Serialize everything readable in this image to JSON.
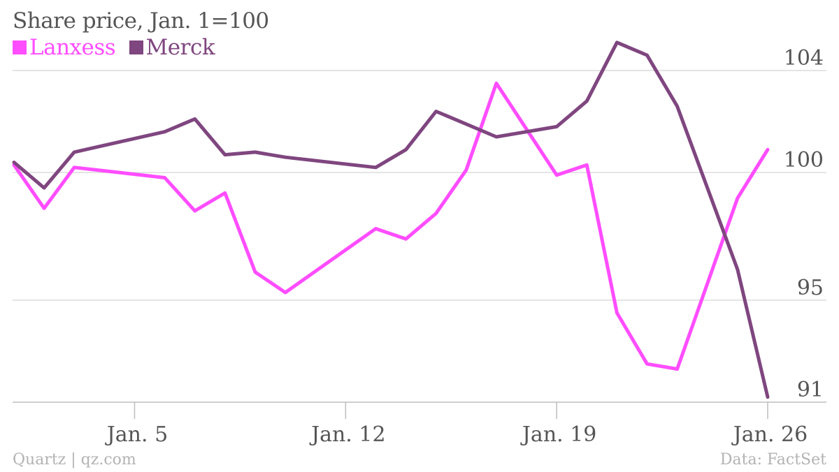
{
  "chart_data": {
    "type": "line",
    "title": "Share price, Jan. 1=100",
    "xlabel": "",
    "ylabel": "",
    "ylim": [
      91,
      104
    ],
    "yticks": [
      104,
      100,
      95,
      91
    ],
    "xticks": [
      {
        "day": 5,
        "label": "Jan. 5"
      },
      {
        "day": 12,
        "label": "Jan. 12"
      },
      {
        "day": 19,
        "label": "Jan. 19"
      },
      {
        "day": 26,
        "label": "Jan. 26"
      }
    ],
    "x": [
      1,
      2,
      3,
      6,
      7,
      8,
      9,
      10,
      13,
      14,
      15,
      16,
      17,
      19,
      20,
      21,
      22,
      23,
      25,
      26
    ],
    "series": [
      {
        "name": "Lanxess",
        "color": "#ff4dff",
        "values": [
          100.3,
          98.6,
          100.2,
          99.8,
          98.5,
          99.2,
          96.1,
          95.3,
          97.8,
          97.4,
          98.4,
          100.1,
          103.5,
          99.9,
          100.3,
          94.5,
          92.5,
          92.3,
          99.0,
          100.9
        ]
      },
      {
        "name": "Merck",
        "color": "#7f467f",
        "values": [
          100.4,
          99.4,
          100.8,
          101.6,
          102.1,
          100.7,
          100.8,
          100.6,
          100.2,
          100.9,
          102.4,
          101.9,
          101.4,
          101.8,
          102.8,
          105.1,
          104.6,
          102.6,
          96.2,
          91.2
        ]
      }
    ],
    "grid": true,
    "legend_position": "top-left"
  },
  "footer": {
    "source_left": "Quartz | qz.com",
    "source_right": "Data: FactSet"
  }
}
